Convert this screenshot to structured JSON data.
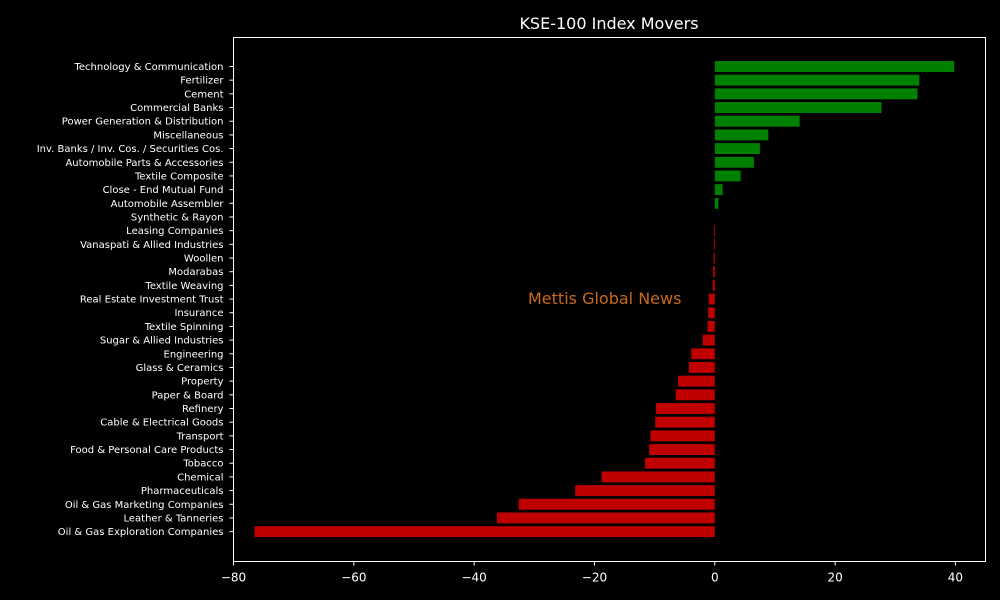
{
  "chart_data": {
    "type": "bar",
    "orientation": "horizontal",
    "title": "KSE-100 Index Movers",
    "xlabel": "",
    "ylabel": "",
    "xlim": [
      -80,
      45
    ],
    "xticks": [
      -80,
      -60,
      -40,
      -20,
      0,
      20,
      40
    ],
    "xtick_labels": [
      "−80",
      "−60",
      "−40",
      "−20",
      "0",
      "20",
      "40"
    ],
    "grid": false,
    "colors": {
      "positive": "#008000",
      "negative": "#c00000",
      "background": "#000000",
      "axes": "#ffffff",
      "watermark": "#c8691e"
    },
    "categories": [
      "Technology & Communication",
      "Fertilizer",
      "Cement",
      "Commercial Banks",
      "Power Generation & Distribution",
      "Miscellaneous",
      "Inv. Banks / Inv. Cos. / Securities Cos.",
      "Automobile Parts & Accessories",
      "Textile Composite",
      "Close - End Mutual Fund",
      "Automobile Assembler",
      "Synthetic & Rayon",
      "Leasing Companies",
      "Vanaspati & Allied Industries",
      "Woollen",
      "Modarabas",
      "Textile Weaving",
      "Real Estate Investment Trust",
      "Insurance",
      "Textile Spinning",
      "Sugar & Allied Industries",
      "Engineering",
      "Glass & Ceramics",
      "Property",
      "Paper & Board",
      "Refinery",
      "Cable & Electrical Goods",
      "Transport",
      "Food & Personal Care Products",
      "Tobacco",
      "Chemical",
      "Pharmaceuticals",
      "Oil & Gas Marketing Companies",
      "Leather & Tanneries",
      "Oil & Gas Exploration Companies"
    ],
    "values": [
      39.8,
      34.0,
      33.7,
      27.7,
      14.1,
      8.9,
      7.5,
      6.5,
      4.3,
      1.3,
      0.6,
      0.0,
      -0.1,
      -0.15,
      -0.2,
      -0.3,
      -0.35,
      -1.0,
      -1.1,
      -1.2,
      -2.0,
      -3.9,
      -4.3,
      -6.1,
      -6.5,
      -9.8,
      -9.9,
      -10.7,
      -10.9,
      -11.6,
      -18.8,
      -23.2,
      -32.6,
      -36.2,
      -76.5
    ]
  },
  "watermark": "Mettis Global News"
}
